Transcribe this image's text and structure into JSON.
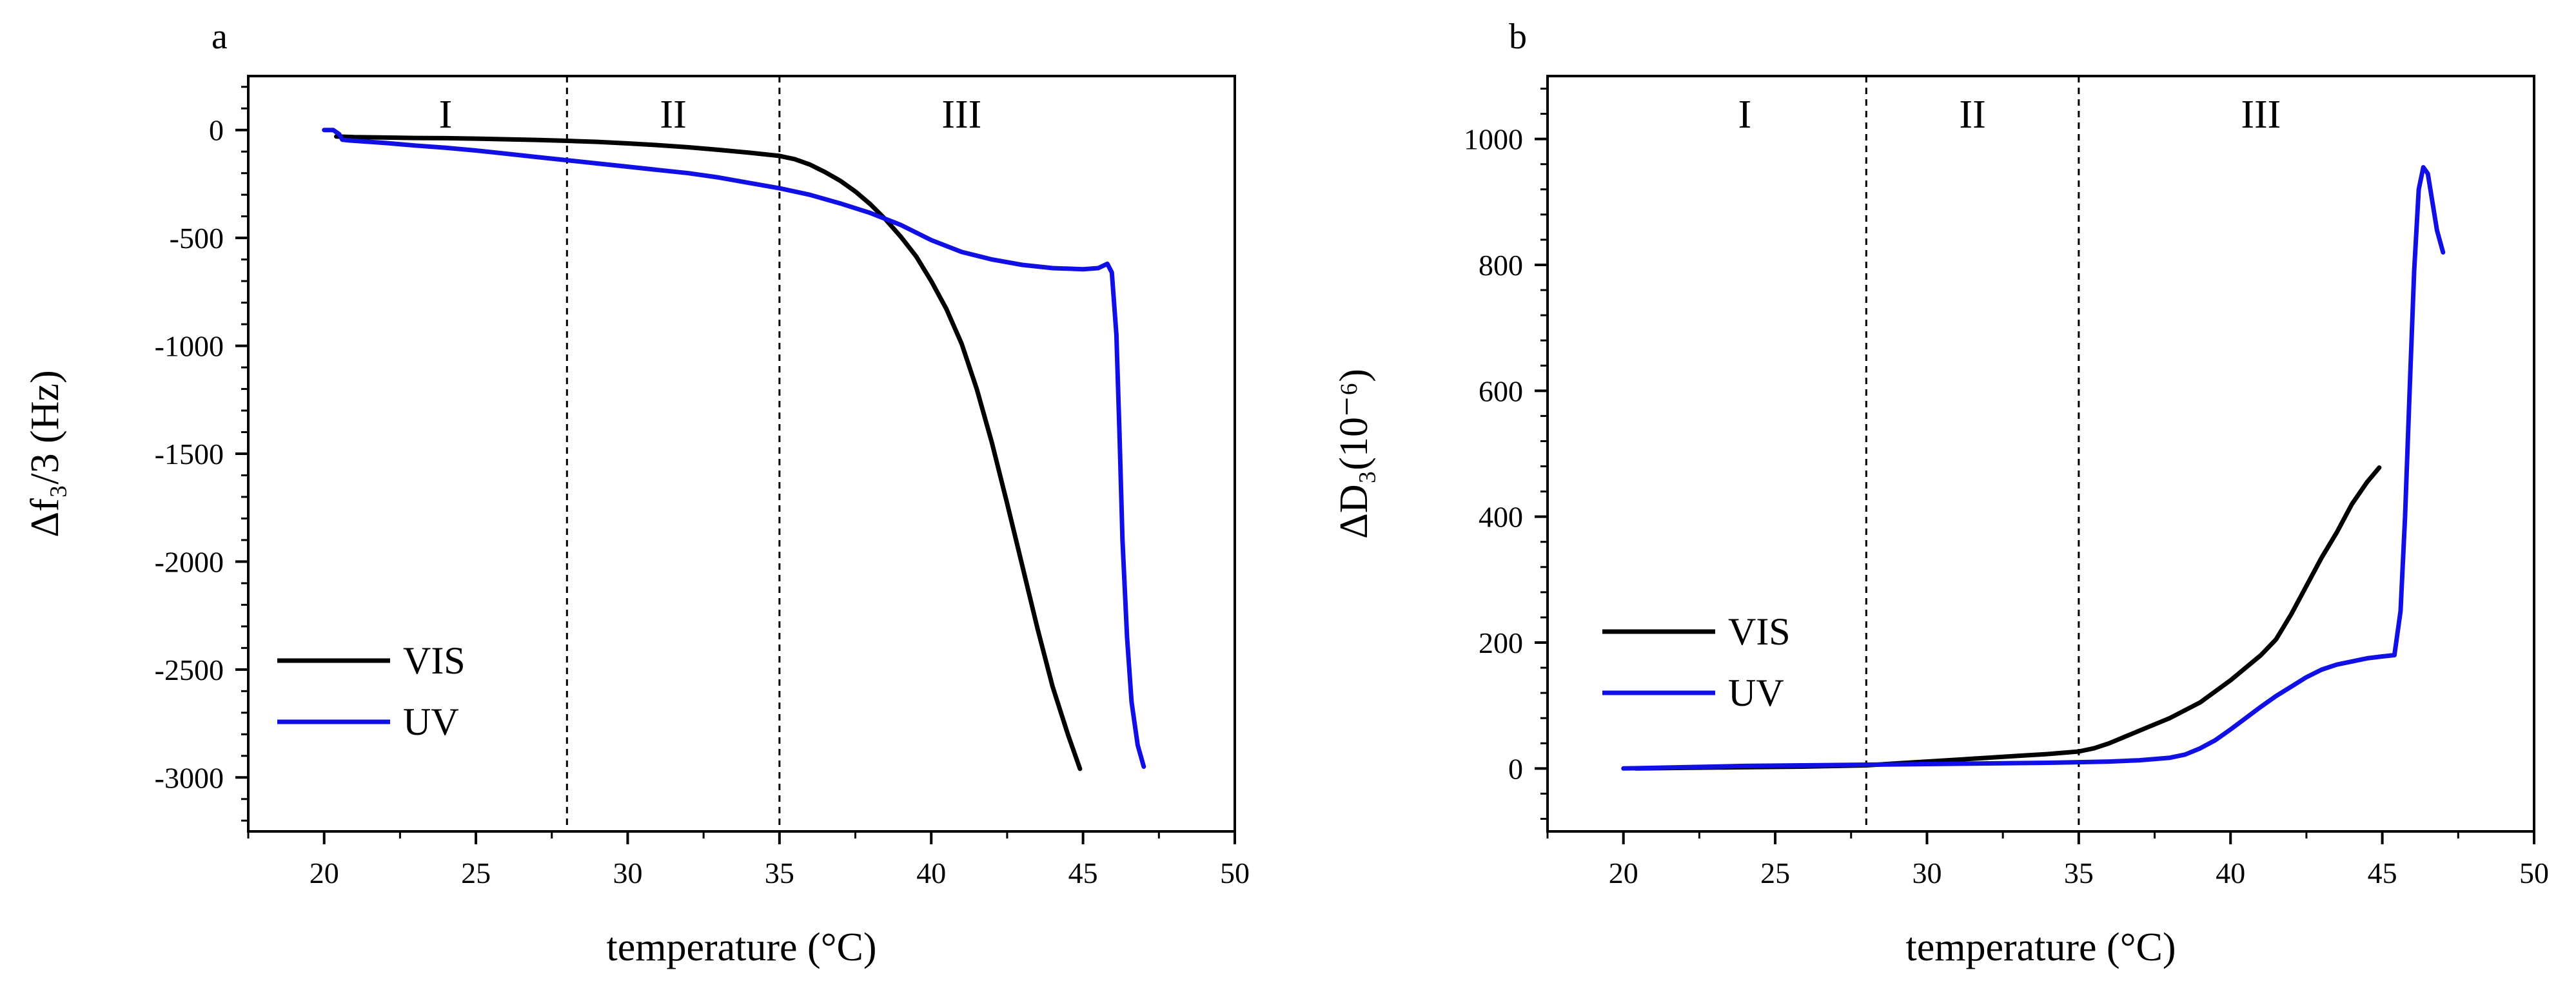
{
  "chart_data": [
    {
      "panel": "a",
      "type": "line",
      "title": "",
      "xlabel": "temperature (°C)",
      "ylabel": "Δf₃/3 (Hz)",
      "xlim": [
        17.5,
        50
      ],
      "ylim": [
        -3250,
        250
      ],
      "xticks": [
        20,
        25,
        30,
        35,
        40,
        45,
        50
      ],
      "yticks": [
        0,
        -500,
        -1000,
        -1500,
        -2000,
        -2500,
        -3000
      ],
      "ytick_labels": [
        "0",
        "-500",
        "-1000",
        "-1500",
        "-2000",
        "-2500",
        "-3000"
      ],
      "minor_ticks": true,
      "grid": false,
      "legend_position": "lower-left",
      "regions": [
        {
          "label": "I",
          "from": 20,
          "to": 28
        },
        {
          "label": "II",
          "from": 28,
          "to": 35
        },
        {
          "label": "III",
          "from": 35,
          "to": 47
        }
      ],
      "dividers": [
        28,
        35
      ],
      "series": [
        {
          "name": "VIS",
          "color": "#000000",
          "x": [
            20.4,
            21,
            22,
            23,
            24,
            25,
            26,
            27,
            28,
            29,
            30,
            31,
            32,
            33,
            34,
            35,
            35.5,
            36,
            36.5,
            37,
            37.5,
            38,
            38.5,
            39,
            39.5,
            40,
            40.5,
            41,
            41.5,
            42,
            42.5,
            43,
            43.5,
            44,
            44.5,
            44.9
          ],
          "y": [
            -30,
            -33,
            -35,
            -37,
            -38,
            -40,
            -43,
            -46,
            -50,
            -55,
            -62,
            -70,
            -80,
            -92,
            -105,
            -120,
            -135,
            -160,
            -195,
            -235,
            -285,
            -345,
            -415,
            -495,
            -585,
            -700,
            -830,
            -990,
            -1200,
            -1450,
            -1730,
            -2020,
            -2310,
            -2580,
            -2800,
            -2960
          ]
        },
        {
          "name": "UV",
          "color": "#1010e6",
          "x": [
            20.0,
            20.3,
            20.5,
            20.6,
            20.8,
            21,
            22,
            23,
            24,
            25,
            26,
            27,
            28,
            29,
            30,
            31,
            32,
            33,
            34,
            35,
            36,
            37,
            38,
            39,
            40,
            41,
            42,
            43,
            44,
            45,
            45.5,
            45.8,
            45.95,
            46.1,
            46.2,
            46.3,
            46.45,
            46.6,
            46.8,
            47.0
          ],
          "y": [
            0,
            0,
            -20,
            -45,
            -48,
            -50,
            -60,
            -72,
            -82,
            -95,
            -110,
            -125,
            -140,
            -155,
            -170,
            -185,
            -200,
            -220,
            -245,
            -270,
            -300,
            -340,
            -385,
            -440,
            -510,
            -565,
            -600,
            -625,
            -640,
            -645,
            -640,
            -620,
            -660,
            -950,
            -1400,
            -1900,
            -2350,
            -2650,
            -2850,
            -2950
          ]
        }
      ]
    },
    {
      "panel": "b",
      "type": "line",
      "title": "",
      "xlabel": "temperature (°C)",
      "ylabel": "ΔD₃(10⁻⁶)",
      "xlim": [
        17.5,
        50
      ],
      "ylim": [
        -100,
        1100
      ],
      "xticks": [
        20,
        25,
        30,
        35,
        40,
        45,
        50
      ],
      "yticks": [
        0,
        200,
        400,
        600,
        800,
        1000
      ],
      "ytick_labels": [
        "0",
        "200",
        "400",
        "600",
        "800",
        "1000"
      ],
      "minor_ticks": true,
      "grid": false,
      "legend_position": "center-left",
      "regions": [
        {
          "label": "I",
          "from": 20,
          "to": 28
        },
        {
          "label": "II",
          "from": 28,
          "to": 35
        },
        {
          "label": "III",
          "from": 35,
          "to": 47
        }
      ],
      "dividers": [
        28,
        35
      ],
      "series": [
        {
          "name": "VIS",
          "color": "#000000",
          "x": [
            20.4,
            22,
            24,
            26,
            28,
            29,
            30,
            31,
            32,
            33,
            34,
            35,
            35.5,
            36,
            37,
            38,
            39,
            40,
            41,
            41.5,
            42,
            42.5,
            43,
            43.5,
            44,
            44.5,
            44.9
          ],
          "y": [
            0,
            1,
            2,
            3,
            5,
            8,
            11,
            14,
            17,
            20,
            23,
            27,
            32,
            40,
            60,
            80,
            105,
            140,
            180,
            205,
            245,
            290,
            335,
            375,
            420,
            455,
            478
          ]
        },
        {
          "name": "UV",
          "color": "#1010e6",
          "x": [
            20.0,
            22,
            24,
            26,
            28,
            30,
            32,
            34,
            35,
            36,
            37,
            38,
            38.5,
            39,
            39.5,
            40,
            40.5,
            41,
            41.5,
            42,
            42.5,
            43,
            43.5,
            44,
            44.5,
            45,
            45.4,
            45.6,
            45.75,
            45.9,
            46.05,
            46.2,
            46.35,
            46.5,
            46.65,
            46.8,
            47.0
          ],
          "y": [
            0,
            2,
            4,
            5,
            6,
            7,
            8,
            9,
            10,
            11,
            13,
            17,
            22,
            32,
            45,
            62,
            80,
            98,
            115,
            130,
            145,
            157,
            165,
            170,
            175,
            178,
            180,
            250,
            400,
            600,
            790,
            920,
            955,
            945,
            900,
            855,
            820
          ]
        }
      ]
    }
  ]
}
